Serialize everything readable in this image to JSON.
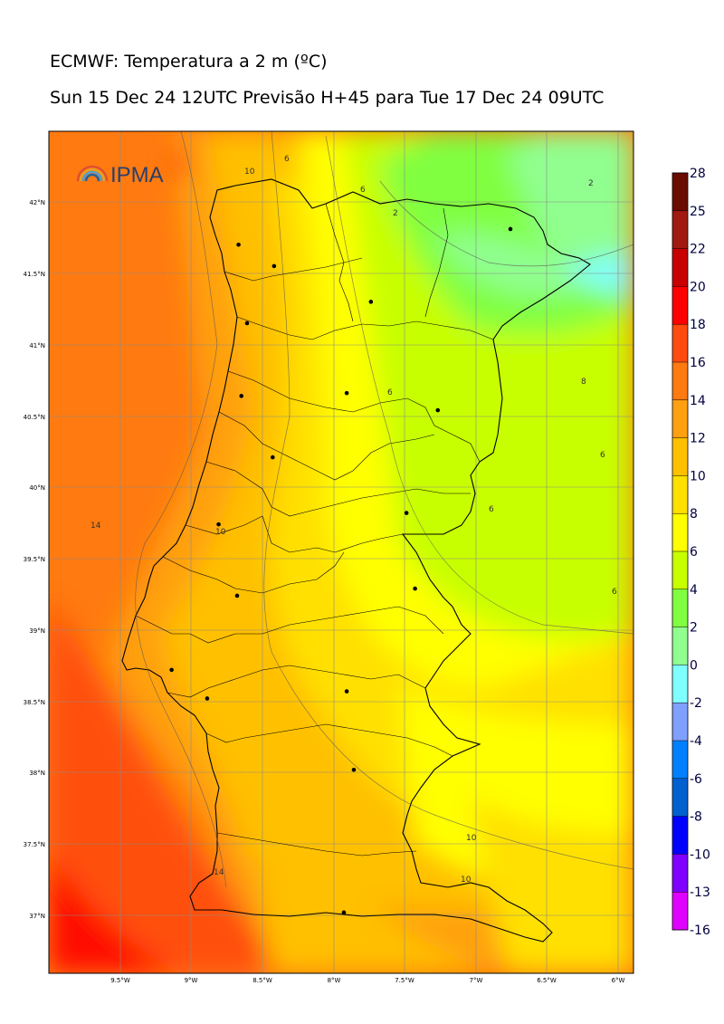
{
  "title_line1": "ECMWF: Temperatura a 2 m (ºC)",
  "title_line2": "Sun 15 Dec 24 12UTC Previsão H+45 para Tue 17 Dec 24 09UTC",
  "logo": {
    "text": "IPMA",
    "icon": "ipma-arc-logo"
  },
  "latitude_labels": [
    "42°N",
    "41.5°N",
    "41°N",
    "40.5°N",
    "40°N",
    "39.5°N",
    "39°N",
    "38.5°N",
    "38°N",
    "37.5°N",
    "37°N"
  ],
  "longitude_labels": [
    "9.5°W",
    "9°W",
    "8.5°W",
    "8°W",
    "7.5°W",
    "7°W",
    "6.5°W",
    "6°W"
  ],
  "colorbar": {
    "ticks": [
      "28",
      "25",
      "22",
      "20",
      "18",
      "16",
      "14",
      "12",
      "10",
      "8",
      "6",
      "4",
      "2",
      "0",
      "-2",
      "-4",
      "-6",
      "-8",
      "-10",
      "-13",
      "-16"
    ],
    "colors": [
      "#6b0c00",
      "#a01a10",
      "#c80000",
      "#ff0000",
      "#ff4a10",
      "#ff7a10",
      "#ffa010",
      "#ffc000",
      "#ffe000",
      "#ffff00",
      "#c8ff00",
      "#80ff40",
      "#90ff90",
      "#80ffff",
      "#80a0ff",
      "#0080ff",
      "#0060d0",
      "#0000ff",
      "#8000ff",
      "#e000ff"
    ]
  },
  "contour_labels": [
    "10",
    "6",
    "6",
    "2",
    "2",
    "6",
    "8",
    "14",
    "10",
    "6",
    "6",
    "6",
    "10",
    "10",
    "14"
  ],
  "cities": [
    {
      "lon": -8.67,
      "lat": 41.7
    },
    {
      "lon": -8.42,
      "lat": 41.55
    },
    {
      "lon": -6.76,
      "lat": 41.81
    },
    {
      "lon": -7.74,
      "lat": 41.3
    },
    {
      "lon": -8.61,
      "lat": 41.15
    },
    {
      "lon": -7.91,
      "lat": 40.66
    },
    {
      "lon": -7.27,
      "lat": 40.54
    },
    {
      "lon": -8.65,
      "lat": 40.64
    },
    {
      "lon": -8.43,
      "lat": 40.21
    },
    {
      "lon": -7.49,
      "lat": 39.82
    },
    {
      "lon": -8.81,
      "lat": 39.74
    },
    {
      "lon": -7.43,
      "lat": 39.29
    },
    {
      "lon": -8.68,
      "lat": 39.24
    },
    {
      "lon": -9.14,
      "lat": 38.72
    },
    {
      "lon": -8.89,
      "lat": 38.52
    },
    {
      "lon": -7.91,
      "lat": 38.57
    },
    {
      "lon": -7.86,
      "lat": 38.02
    },
    {
      "lon": -7.93,
      "lat": 37.02
    }
  ]
}
